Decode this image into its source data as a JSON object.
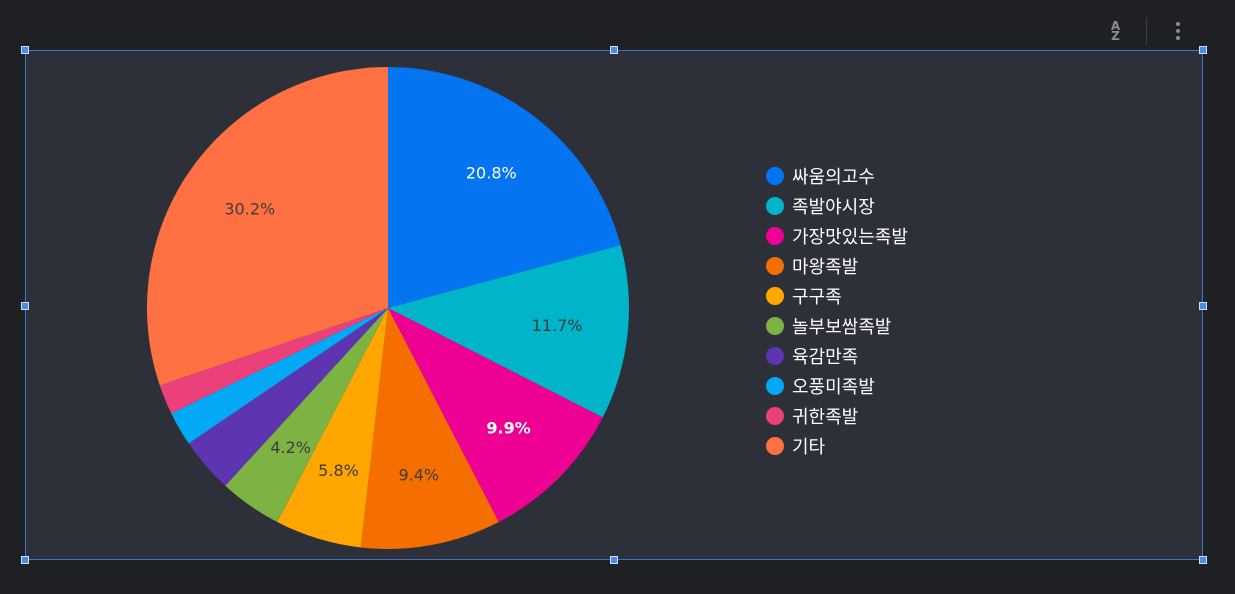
{
  "chart_data": {
    "type": "pie",
    "categories": [
      "싸움의고수",
      "족발야시장",
      "가장맛있는족발",
      "마왕족발",
      "구구족",
      "놀부보쌈족발",
      "육감만족",
      "오풍미족발",
      "귀한족발",
      "기타"
    ],
    "values": [
      20.8,
      11.7,
      9.9,
      9.4,
      5.8,
      4.2,
      3.7,
      2.3,
      2.0,
      30.2
    ],
    "colors": [
      "#0474f0",
      "#00b5ca",
      "#ee0095",
      "#f56f00",
      "#ffa600",
      "#7cb342",
      "#5e35b1",
      "#03a9f4",
      "#ec407a",
      "#ff7043"
    ],
    "labels": [
      "20.8%",
      "11.7%",
      "9.9%",
      "9.4%",
      "5.8%",
      "4.2%",
      "",
      "",
      "",
      "30.2%"
    ],
    "label_colors": [
      "#ffffff",
      "#3d3d3d",
      "#ffffff",
      "#3d3d3d",
      "#3d3d3d",
      "#3d3d3d",
      "",
      "",
      "",
      "#3d3d3d"
    ],
    "label_bold": [
      false,
      false,
      true,
      false,
      false,
      false,
      false,
      false,
      false,
      false
    ],
    "title": "",
    "legend_position": "right",
    "start_angle": "12 o'clock, clockwise"
  },
  "toolbar": {
    "sort_icon": "sort-az-icon",
    "more_icon": "more-vertical-icon",
    "sort_text_top": "A",
    "sort_text_bottom": "Z"
  },
  "colors": {
    "background": "#1f2024",
    "panel": "#2d2f39",
    "selection": "#3e74c8"
  }
}
